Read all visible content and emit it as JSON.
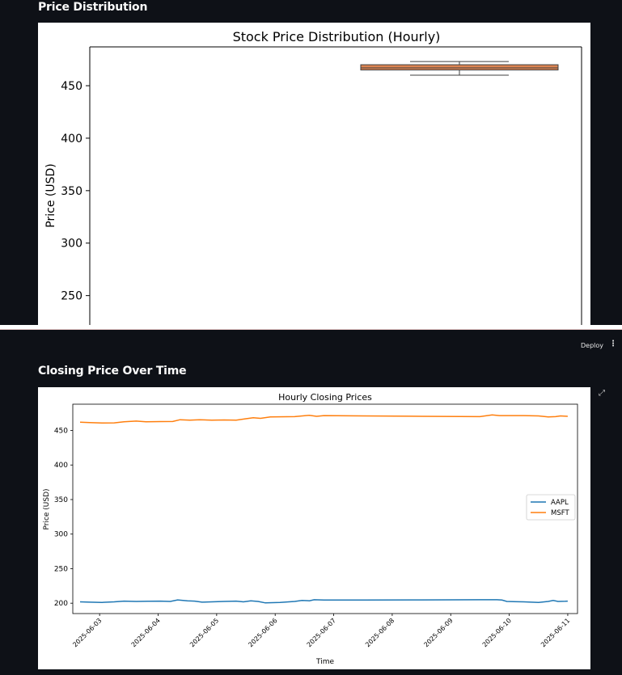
{
  "sections": {
    "distribution_title": "Price Distribution",
    "closing_title": "Closing Price Over Time"
  },
  "header": {
    "deploy_label": "Deploy",
    "menu_icon": "vertical-ellipsis-icon",
    "menu_glyph": "⋮",
    "expand_icon": "fullscreen-expand-icon",
    "expand_glyph": "⤢"
  },
  "chart_data": [
    {
      "type": "box",
      "title": "Stock Price Distribution (Hourly)",
      "xlabel": "",
      "ylabel": "Price (USD)",
      "ylim": [
        222,
        487
      ],
      "yticks": [
        250,
        300,
        350,
        400,
        450
      ],
      "boxes": [
        {
          "whisker_low": 460,
          "q1": 465,
          "median": 467,
          "q3": 470,
          "whisker_high": 473,
          "color": "#dd8452"
        }
      ],
      "grid": false
    },
    {
      "type": "line",
      "title": "Hourly Closing Prices",
      "xlabel": "Time",
      "ylabel": "Price (USD)",
      "ylim": [
        185,
        488
      ],
      "yticks": [
        200,
        250,
        300,
        350,
        400,
        450
      ],
      "xlim": [
        "2025-06-02T13:00",
        "2025-06-11T04:00"
      ],
      "xticks": [
        "2025-06-03",
        "2025-06-04",
        "2025-06-05",
        "2025-06-06",
        "2025-06-07",
        "2025-06-08",
        "2025-06-09",
        "2025-06-10",
        "2025-06-11"
      ],
      "legend": "center-right",
      "grid": false,
      "series": [
        {
          "name": "AAPL",
          "color": "#1f77b4",
          "points": [
            [
              "2025-06-02T16:00",
              202.0
            ],
            [
              "2025-06-02T20:00",
              201.5
            ],
            [
              "2025-06-03T01:00",
              201.2
            ],
            [
              "2025-06-03T06:00",
              202.0
            ],
            [
              "2025-06-03T10:00",
              203.0
            ],
            [
              "2025-06-03T15:00",
              202.5
            ],
            [
              "2025-06-03T20:00",
              202.8
            ],
            [
              "2025-06-04T01:00",
              203.0
            ],
            [
              "2025-06-04T05:00",
              202.5
            ],
            [
              "2025-06-04T08:00",
              204.8
            ],
            [
              "2025-06-04T12:00",
              203.5
            ],
            [
              "2025-06-04T15:00",
              203.0
            ],
            [
              "2025-06-04T18:00",
              201.5
            ],
            [
              "2025-06-04T22:00",
              202.0
            ],
            [
              "2025-06-05T03:00",
              202.5
            ],
            [
              "2025-06-05T08:00",
              203.0
            ],
            [
              "2025-06-05T11:00",
              202.0
            ],
            [
              "2025-06-05T14:00",
              203.5
            ],
            [
              "2025-06-05T17:00",
              202.5
            ],
            [
              "2025-06-05T20:00",
              200.5
            ],
            [
              "2025-06-06T02:00",
              201.0
            ],
            [
              "2025-06-06T08:00",
              202.5
            ],
            [
              "2025-06-06T11:00",
              204.0
            ],
            [
              "2025-06-06T14:00",
              203.5
            ],
            [
              "2025-06-06T16:00",
              205.0
            ],
            [
              "2025-06-06T20:00",
              204.5
            ],
            [
              "2025-06-07T12:00",
              204.5
            ],
            [
              "2025-06-08T12:00",
              204.8
            ],
            [
              "2025-06-09T12:00",
              205.0
            ],
            [
              "2025-06-09T19:00",
              205.0
            ],
            [
              "2025-06-09T21:00",
              204.5
            ],
            [
              "2025-06-09T23:00",
              202.5
            ],
            [
              "2025-06-10T06:00",
              202.0
            ],
            [
              "2025-06-10T12:00",
              201.0
            ],
            [
              "2025-06-10T16:00",
              202.5
            ],
            [
              "2025-06-10T18:00",
              204.0
            ],
            [
              "2025-06-10T20:00",
              202.5
            ],
            [
              "2025-06-10T23:00",
              202.8
            ],
            [
              "2025-06-11T00:00",
              203.0
            ]
          ]
        },
        {
          "name": "MSFT",
          "color": "#ff7f0e",
          "points": [
            [
              "2025-06-02T16:00",
              462.0
            ],
            [
              "2025-06-02T20:00",
              461.5
            ],
            [
              "2025-06-03T01:00",
              460.8
            ],
            [
              "2025-06-03T06:00",
              461.0
            ],
            [
              "2025-06-03T10:00",
              462.5
            ],
            [
              "2025-06-03T15:00",
              463.5
            ],
            [
              "2025-06-03T19:00",
              462.5
            ],
            [
              "2025-06-04T01:00",
              462.8
            ],
            [
              "2025-06-04T06:00",
              463.0
            ],
            [
              "2025-06-04T09:00",
              465.5
            ],
            [
              "2025-06-04T13:00",
              465.0
            ],
            [
              "2025-06-04T17:00",
              465.5
            ],
            [
              "2025-06-04T22:00",
              465.0
            ],
            [
              "2025-06-05T03:00",
              465.2
            ],
            [
              "2025-06-05T08:00",
              465.0
            ],
            [
              "2025-06-05T12:00",
              467.0
            ],
            [
              "2025-06-05T15:00",
              468.5
            ],
            [
              "2025-06-05T18:00",
              467.5
            ],
            [
              "2025-06-05T22:00",
              469.5
            ],
            [
              "2025-06-06T08:00",
              470.0
            ],
            [
              "2025-06-06T14:00",
              472.0
            ],
            [
              "2025-06-06T17:00",
              470.5
            ],
            [
              "2025-06-06T20:00",
              471.5
            ],
            [
              "2025-06-07T12:00",
              471.0
            ],
            [
              "2025-06-08T12:00",
              470.5
            ],
            [
              "2025-06-09T12:00",
              470.0
            ],
            [
              "2025-06-09T17:00",
              472.5
            ],
            [
              "2025-06-09T20:00",
              471.5
            ],
            [
              "2025-06-10T06:00",
              471.5
            ],
            [
              "2025-06-10T12:00",
              471.0
            ],
            [
              "2025-06-10T16:00",
              469.5
            ],
            [
              "2025-06-10T19:00",
              470.0
            ],
            [
              "2025-06-10T21:00",
              471.0
            ],
            [
              "2025-06-11T00:00",
              470.5
            ]
          ]
        }
      ]
    }
  ]
}
